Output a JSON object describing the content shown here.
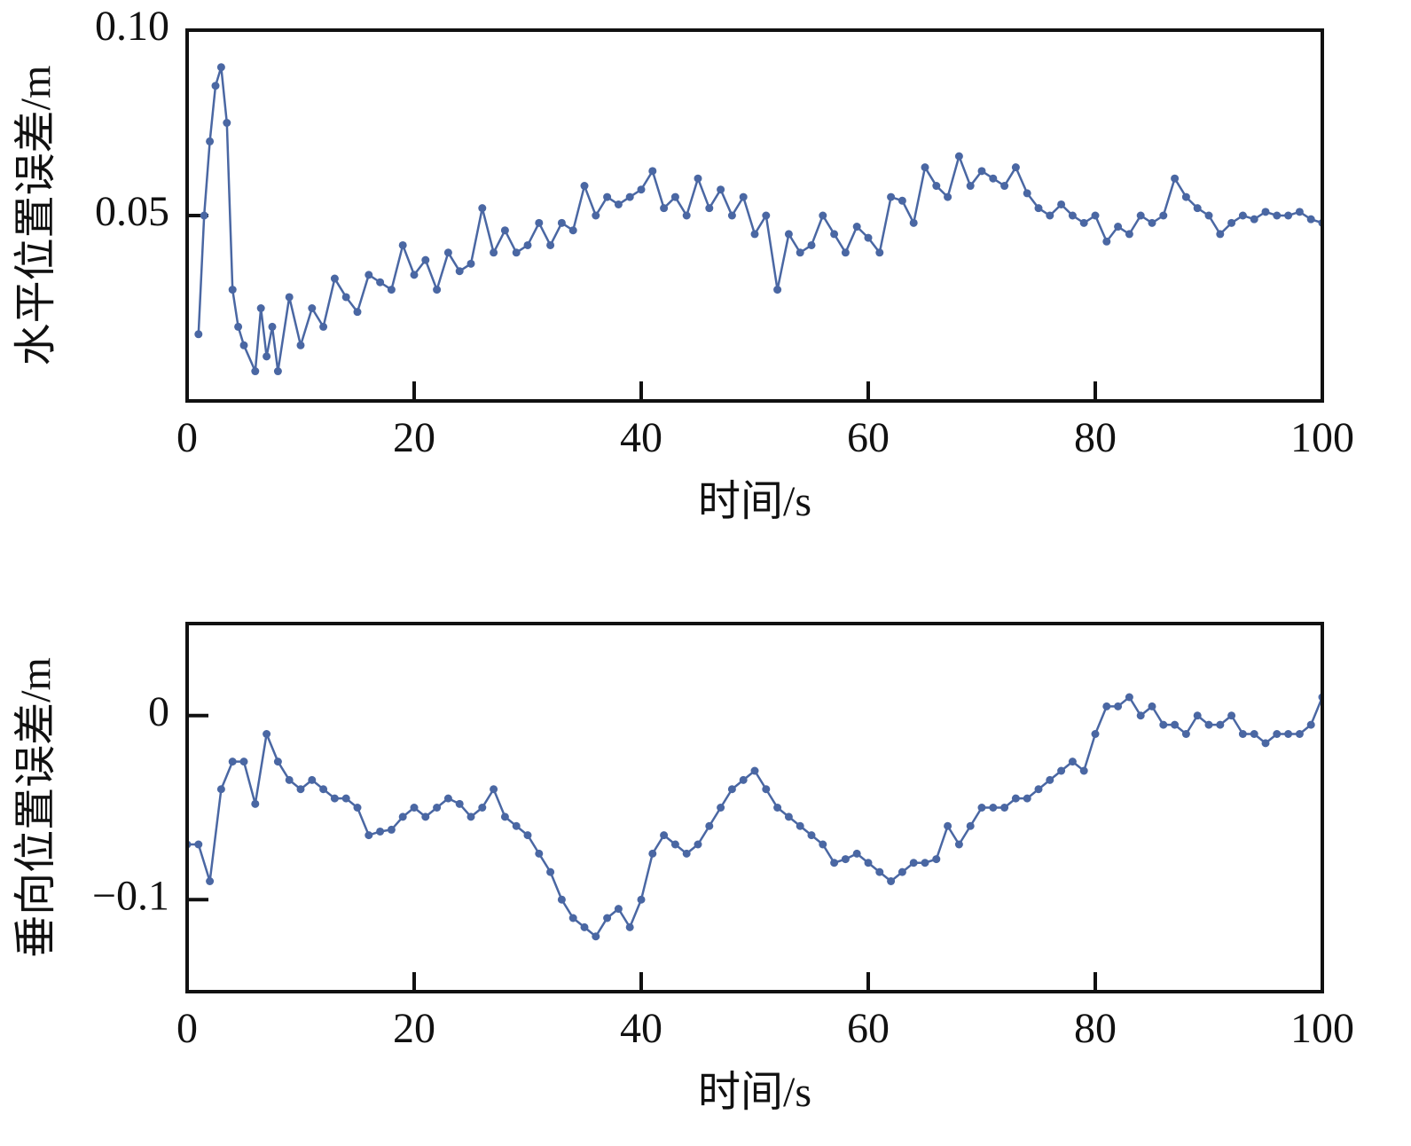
{
  "chart_data": [
    {
      "type": "line",
      "xlabel": "时间/s",
      "ylabel": "水平位置误差/m",
      "color": "#4a67a3",
      "x": [
        1,
        1.5,
        2,
        2.5,
        3,
        3.5,
        4,
        4.5,
        5,
        6,
        6.5,
        7,
        7.5,
        8,
        9,
        10,
        11,
        12,
        13,
        14,
        15,
        16,
        17,
        18,
        19,
        20,
        21,
        22,
        23,
        24,
        25,
        26,
        27,
        28,
        29,
        30,
        31,
        32,
        33,
        34,
        35,
        36,
        37,
        38,
        39,
        40,
        41,
        42,
        43,
        44,
        45,
        46,
        47,
        48,
        49,
        50,
        51,
        52,
        53,
        54,
        55,
        56,
        57,
        58,
        59,
        60,
        61,
        62,
        63,
        64,
        65,
        66,
        67,
        68,
        69,
        70,
        71,
        72,
        73,
        74,
        75,
        76,
        77,
        78,
        79,
        80,
        81,
        82,
        83,
        84,
        85,
        86,
        87,
        88,
        89,
        90,
        91,
        92,
        93,
        94,
        95,
        96,
        97,
        98,
        99,
        100
      ],
      "values": [
        0.018,
        0.05,
        0.07,
        0.085,
        0.09,
        0.075,
        0.03,
        0.02,
        0.015,
        0.008,
        0.025,
        0.012,
        0.02,
        0.008,
        0.028,
        0.015,
        0.025,
        0.02,
        0.033,
        0.028,
        0.024,
        0.034,
        0.032,
        0.03,
        0.042,
        0.034,
        0.038,
        0.03,
        0.04,
        0.035,
        0.037,
        0.052,
        0.04,
        0.046,
        0.04,
        0.042,
        0.048,
        0.042,
        0.048,
        0.046,
        0.058,
        0.05,
        0.055,
        0.053,
        0.055,
        0.057,
        0.062,
        0.052,
        0.055,
        0.05,
        0.06,
        0.052,
        0.057,
        0.05,
        0.055,
        0.045,
        0.05,
        0.03,
        0.045,
        0.04,
        0.042,
        0.05,
        0.045,
        0.04,
        0.047,
        0.044,
        0.04,
        0.055,
        0.054,
        0.048,
        0.063,
        0.058,
        0.055,
        0.066,
        0.058,
        0.062,
        0.06,
        0.058,
        0.063,
        0.056,
        0.052,
        0.05,
        0.053,
        0.05,
        0.048,
        0.05,
        0.043,
        0.047,
        0.045,
        0.05,
        0.048,
        0.05,
        0.06,
        0.055,
        0.052,
        0.05,
        0.045,
        0.048,
        0.05,
        0.049,
        0.051,
        0.05,
        0.05,
        0.051,
        0.049,
        0.048
      ],
      "xlim": [
        0,
        100
      ],
      "ylim": [
        0,
        0.1
      ],
      "xticks": [
        0,
        20,
        40,
        60,
        80,
        100
      ],
      "yticks": [
        0.05,
        {
          "value": 0.1,
          "label": "0.10"
        }
      ]
    },
    {
      "type": "line",
      "xlabel": "时间/s",
      "ylabel": "垂向位置误差/m",
      "color": "#4a67a3",
      "x": [
        0,
        1,
        2,
        3,
        4,
        5,
        6,
        7,
        8,
        9,
        10,
        11,
        12,
        13,
        14,
        15,
        16,
        17,
        18,
        19,
        20,
        21,
        22,
        23,
        24,
        25,
        26,
        27,
        28,
        29,
        30,
        31,
        32,
        33,
        34,
        35,
        36,
        37,
        38,
        39,
        40,
        41,
        42,
        43,
        44,
        45,
        46,
        47,
        48,
        49,
        50,
        51,
        52,
        53,
        54,
        55,
        56,
        57,
        58,
        59,
        60,
        61,
        62,
        63,
        64,
        65,
        66,
        67,
        68,
        69,
        70,
        71,
        72,
        73,
        74,
        75,
        76,
        77,
        78,
        79,
        80,
        81,
        82,
        83,
        84,
        85,
        86,
        87,
        88,
        89,
        90,
        91,
        92,
        93,
        94,
        95,
        96,
        97,
        98,
        99,
        100
      ],
      "values": [
        -0.07,
        -0.07,
        -0.09,
        -0.04,
        -0.025,
        -0.025,
        -0.048,
        -0.01,
        -0.025,
        -0.035,
        -0.04,
        -0.035,
        -0.04,
        -0.045,
        -0.045,
        -0.05,
        -0.065,
        -0.063,
        -0.062,
        -0.055,
        -0.05,
        -0.055,
        -0.05,
        -0.045,
        -0.048,
        -0.055,
        -0.05,
        -0.04,
        -0.055,
        -0.06,
        -0.065,
        -0.075,
        -0.085,
        -0.1,
        -0.11,
        -0.115,
        -0.12,
        -0.11,
        -0.105,
        -0.115,
        -0.1,
        -0.075,
        -0.065,
        -0.07,
        -0.075,
        -0.07,
        -0.06,
        -0.05,
        -0.04,
        -0.035,
        -0.03,
        -0.04,
        -0.05,
        -0.055,
        -0.06,
        -0.065,
        -0.07,
        -0.08,
        -0.078,
        -0.075,
        -0.08,
        -0.085,
        -0.09,
        -0.085,
        -0.08,
        -0.08,
        -0.078,
        -0.06,
        -0.07,
        -0.06,
        -0.05,
        -0.05,
        -0.05,
        -0.045,
        -0.045,
        -0.04,
        -0.035,
        -0.03,
        -0.025,
        -0.03,
        -0.01,
        0.005,
        0.005,
        0.01,
        0,
        0.005,
        -0.005,
        -0.005,
        -0.01,
        0,
        -0.005,
        -0.005,
        0,
        -0.01,
        -0.01,
        -0.015,
        -0.01,
        -0.01,
        -0.01,
        -0.005,
        0.01
      ],
      "xlim": [
        0,
        100
      ],
      "ylim": [
        -0.15,
        0.05
      ],
      "xticks": [
        0,
        20,
        40,
        60,
        80,
        100
      ],
      "yticks": [
        {
          "value": -0.1,
          "label": "−0.1"
        },
        0
      ]
    }
  ]
}
